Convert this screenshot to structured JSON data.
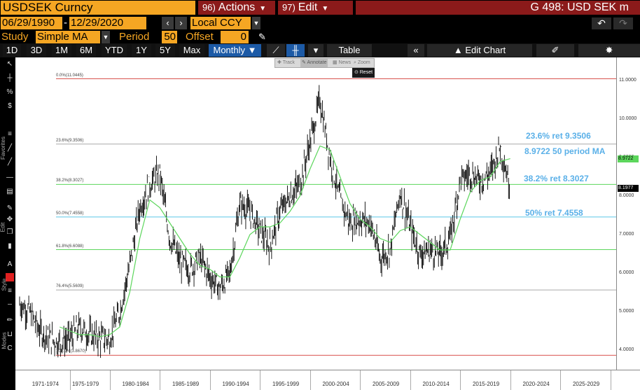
{
  "header": {
    "security": "USDSEK Curncy",
    "actions": {
      "num": "96)",
      "label": "Actions"
    },
    "edit": {
      "num": "97)",
      "label": "Edit"
    },
    "function": "G 498: USD SEK m"
  },
  "range": {
    "start": "06/29/1990",
    "end": "12/29/2020",
    "currency": "Local CCY"
  },
  "study": {
    "label": "Study",
    "value": "Simple MA",
    "period_label": "Period",
    "period": "50",
    "offset_label": "Offset",
    "offset": "0"
  },
  "periods": [
    "1D",
    "3D",
    "1M",
    "6M",
    "YTD",
    "1Y",
    "5Y",
    "Max"
  ],
  "frequency": "Monthly",
  "toolbar": {
    "table": "Table",
    "edit_chart": "Edit Chart"
  },
  "mini_toolbar": {
    "track": "Track",
    "annotate": "Annotate",
    "news": "News",
    "zoom": "Zoom",
    "reset": "Reset"
  },
  "left_toolbar": {
    "favorites": "Favorites",
    "edit": "Edit",
    "style": "Style",
    "modes": "Modes"
  },
  "fib_levels": [
    {
      "label": "0.0%(11.0445)",
      "value": 11.0445,
      "color": "#d9534f"
    },
    {
      "label": "23.6%(9.3506)",
      "value": 9.3506,
      "color": "#aaaaaa"
    },
    {
      "label": "38.2%(8.3027)",
      "value": 8.3027,
      "color": "#5cd65c"
    },
    {
      "label": "50.0%(7.4558)",
      "value": 7.4558,
      "color": "#5ac8e8"
    },
    {
      "label": "61.8%(6.6088)",
      "value": 6.6088,
      "color": "#5cd65c"
    },
    {
      "label": "76.4%(5.5609)",
      "value": 5.5609,
      "color": "#aaaaaa"
    },
    {
      "label": "100.0%(3.8670)",
      "value": 3.867,
      "color": "#d9534f"
    }
  ],
  "annotations": [
    {
      "text": "23.6% ret 9.3506"
    },
    {
      "text": "8.9722 50 period MA"
    },
    {
      "text": "38.2% ret 8.3027"
    },
    {
      "text": "50% ret 7.4558"
    }
  ],
  "y_ticks": [
    "11.0000",
    "10.0000",
    "9.0000",
    "8.0000",
    "7.0000",
    "6.0000",
    "5.0000",
    "4.0000"
  ],
  "badges": [
    {
      "text": "8.9722",
      "bg": "#5cd65c",
      "color": "#000"
    },
    {
      "text": "8.1977",
      "bg": "#000000",
      "color": "#fff"
    }
  ],
  "x_ticks": [
    "1971-1974",
    "1975-1979",
    "1980-1984",
    "1985-1989",
    "1990-1994",
    "1995-1999",
    "2000-2004",
    "2005-2009",
    "2010-2014",
    "2015-2019",
    "2020-2024",
    "2025-2029"
  ],
  "chart_data": {
    "type": "line",
    "ylim": [
      3.6,
      11.3
    ],
    "x": [
      "1971",
      "1972",
      "1973",
      "1974",
      "1975",
      "1976",
      "1977",
      "1978",
      "1979",
      "1980",
      "1981",
      "1982",
      "1983",
      "1984",
      "1985",
      "1986",
      "1987",
      "1988",
      "1989",
      "1990",
      "1991",
      "1992",
      "1993",
      "1994",
      "1995",
      "1996",
      "1997",
      "1998",
      "1999",
      "2000",
      "2001",
      "2002",
      "2003",
      "2004",
      "2005",
      "2006",
      "2007",
      "2008",
      "2009",
      "2010",
      "2011",
      "2012",
      "2013",
      "2014",
      "2015",
      "2016",
      "2017",
      "2018",
      "2019",
      "2020"
    ],
    "series": [
      {
        "name": "USDSEK Curncy",
        "color": "#000000",
        "values": [
          5.2,
          5.0,
          4.5,
          4.3,
          4.2,
          4.3,
          4.6,
          4.4,
          4.3,
          4.3,
          5.0,
          6.2,
          7.7,
          8.3,
          8.6,
          6.9,
          6.3,
          6.1,
          6.4,
          5.9,
          5.6,
          6.0,
          7.8,
          7.6,
          7.1,
          6.7,
          7.6,
          8.0,
          8.3,
          9.4,
          10.5,
          9.0,
          7.9,
          7.3,
          7.4,
          7.3,
          6.4,
          6.6,
          8.1,
          7.2,
          6.5,
          6.6,
          6.5,
          6.9,
          8.4,
          8.6,
          8.4,
          8.6,
          9.3,
          8.2
        ]
      },
      {
        "name": "50 period MA",
        "color": "#5cd65c",
        "values": [
          null,
          null,
          null,
          null,
          4.6,
          4.5,
          4.4,
          4.4,
          4.35,
          4.4,
          4.6,
          5.5,
          6.9,
          7.9,
          7.7,
          7.3,
          6.9,
          6.5,
          6.2,
          6.1,
          5.9,
          5.9,
          6.4,
          7.0,
          7.2,
          7.2,
          7.3,
          7.6,
          8.0,
          8.7,
          9.3,
          9.2,
          8.5,
          7.8,
          7.4,
          7.2,
          6.9,
          6.8,
          7.1,
          7.2,
          7.0,
          6.8,
          6.6,
          6.6,
          7.4,
          8.1,
          8.4,
          8.5,
          8.9,
          8.97
        ]
      }
    ]
  }
}
